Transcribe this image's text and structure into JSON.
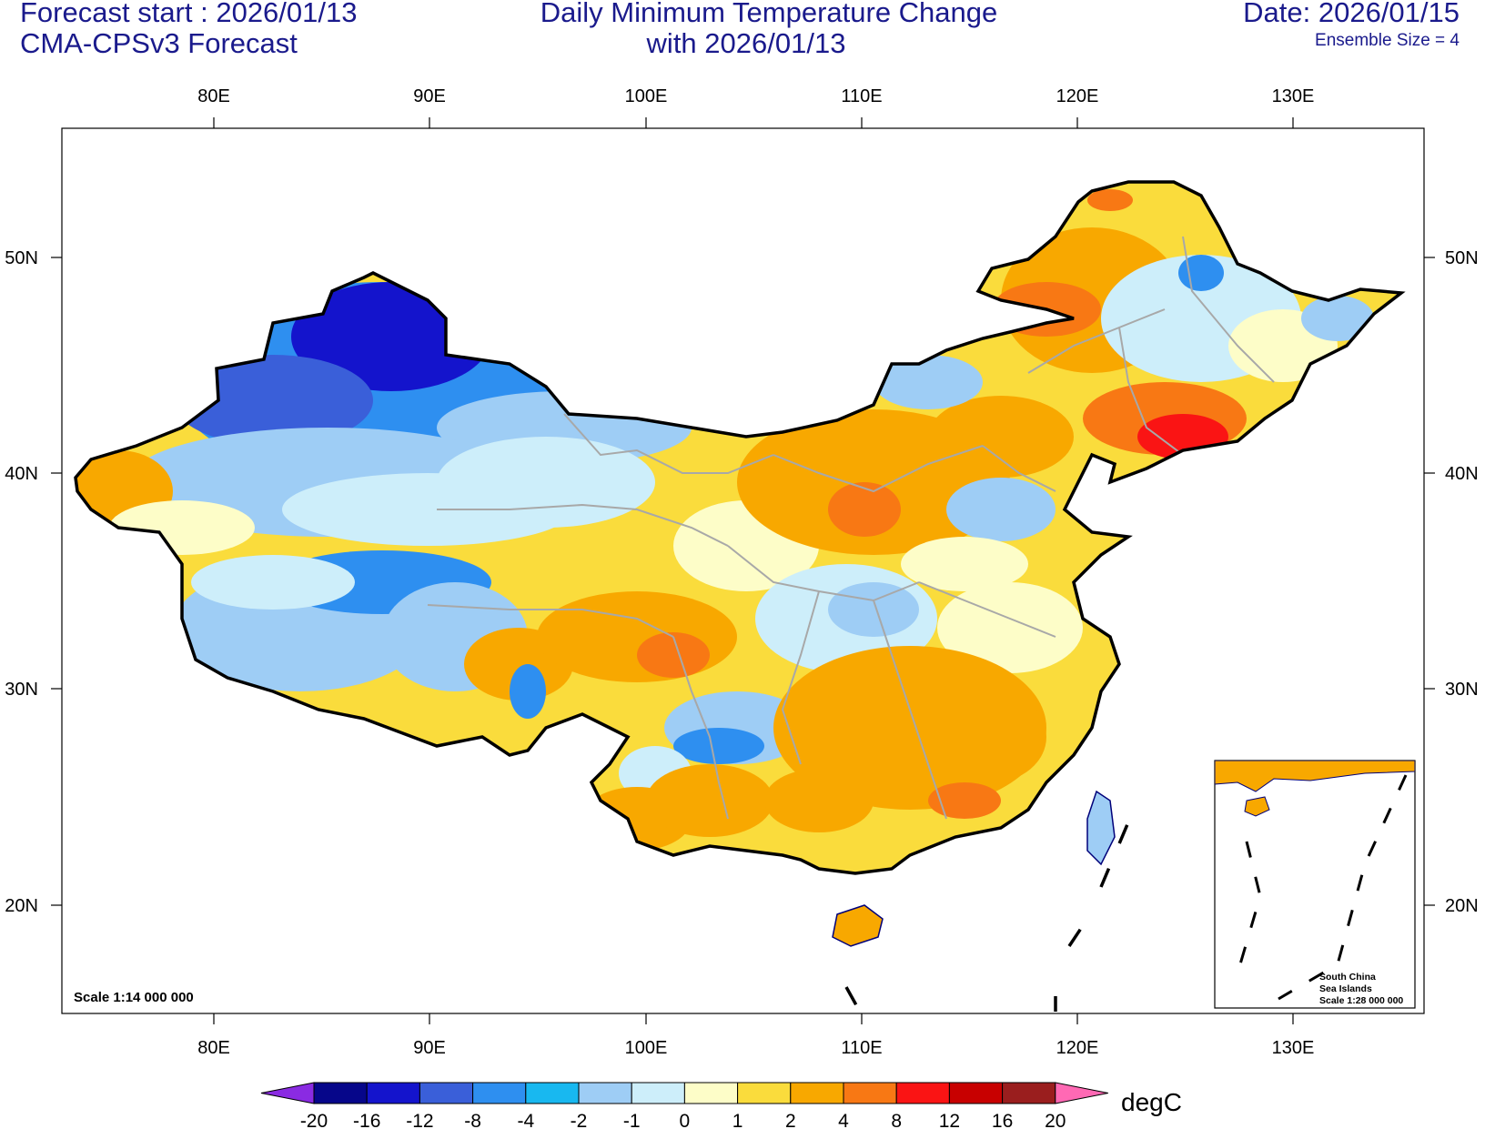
{
  "header": {
    "forecast_start": "Forecast start : 2026/01/13",
    "model": "CMA-CPSv3 Forecast",
    "title_line1": "Daily Minimum Temperature Change",
    "title_line2": "with 2026/01/13",
    "date": "Date: 2026/01/15",
    "ensemble": "Ensemble Size = 4"
  },
  "axes": {
    "lon_labels": [
      "80E",
      "90E",
      "100E",
      "110E",
      "120E",
      "130E"
    ],
    "lat_labels": [
      "50N",
      "40N",
      "30N",
      "20N"
    ]
  },
  "scale_main": "Scale 1:14 000 000",
  "inset": {
    "line1": "South China",
    "line2": "Sea Islands",
    "line3": "Scale 1:28 000 000"
  },
  "colorbar": {
    "ticks": [
      "-20",
      "-16",
      "-12",
      "-8",
      "-4",
      "-2",
      "-1",
      "0",
      "1",
      "2",
      "4",
      "8",
      "12",
      "16",
      "20"
    ],
    "colors": [
      "#06068a",
      "#1414cc",
      "#3a5fd9",
      "#2e8ff0",
      "#18b8f0",
      "#9ecdf5",
      "#cdeefa",
      "#fdfdc8",
      "#fadc3c",
      "#f8a800",
      "#f87814",
      "#fa1414",
      "#c80000",
      "#9a1e1e"
    ],
    "low_color": "#8a2be2",
    "high_color": "#ff69b4",
    "units": "degC"
  },
  "colors": {
    "title": "#1a1a8c",
    "province_border": "#a8a8a8",
    "coast": "#00007a"
  }
}
